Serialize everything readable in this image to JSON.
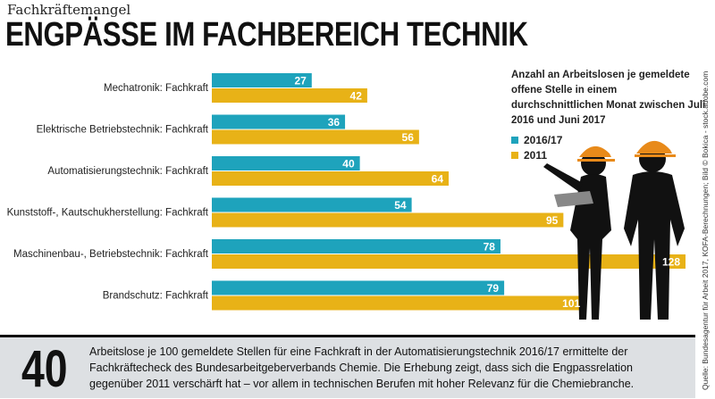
{
  "kicker": "Fachkräftemangel",
  "title": "ENGPÄSSE IM FACHBEREICH TECHNIK",
  "note": "Anzahl an Arbeitslosen je gemeldete offene Stelle in einem durchschnittlichen Monat zwischen Juli 2016 und Juni 2017",
  "colors": {
    "teal": "#1ea3bc",
    "gold": "#e8b217"
  },
  "chart_data": {
    "type": "bar",
    "orientation": "horizontal",
    "categories": [
      "Mechatronik: Fachkraft",
      "Elektrische Betriebstechnik: Fachkraft",
      "Automatisierungstechnik: Fachkraft",
      "Kunststoff-, Kautschukherstellung: Fachkraft",
      "Maschinenbau-, Betriebstechnik: Fachkraft",
      "Brandschutz: Fachkraft"
    ],
    "series": [
      {
        "name": "2016/17",
        "color": "#1ea3bc",
        "values": [
          27,
          36,
          40,
          54,
          78,
          79
        ]
      },
      {
        "name": "2011",
        "color": "#e8b217",
        "values": [
          42,
          56,
          64,
          95,
          128,
          101
        ]
      }
    ],
    "xlim": [
      0,
      128
    ],
    "legend": "right"
  },
  "bottom": {
    "big_number": "40",
    "text": "Arbeitslose je 100 gemeldete Stellen für eine Fachkraft in der Automatisierungstechnik 2016/17 ermittelte der Fachkräftecheck des Bundesarbeitgeberverbands Chemie. Die Erhebung zeigt, dass sich die Engpassrelation gegenüber 2011 verschärft hat – vor allem in technischen Berufen mit hoher Relevanz für die Chemiebranche."
  },
  "source": "Quelle: Bundesagentur für Arbeit 2017, KOFA-Berechnungen; Bild © Bokica - stock.adobe.com"
}
